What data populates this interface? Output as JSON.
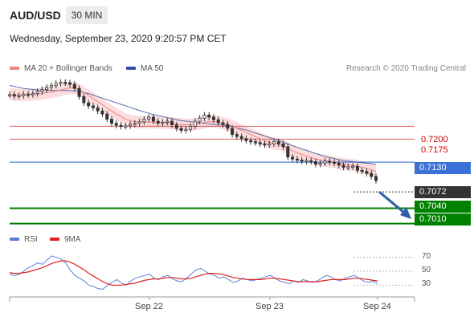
{
  "header": {
    "pair": "AUD/USD",
    "timeframe": "30 MIN",
    "datetime": "Wednesday, September 23, 2020 9:20:57 PM CET"
  },
  "legend": {
    "ma20_label": "MA 20 + Bollinger Bands",
    "ma50_label": "MA 50",
    "credit": "Research © 2020 Trading Central"
  },
  "rsi_legend": {
    "rsi_label": "RSI",
    "ma9_label": "9MA"
  },
  "colors": {
    "ma20": "#f08080",
    "ma50": "#2f4fa0",
    "band": "#fbd2d2",
    "current": "#333333",
    "green": "#008000",
    "blue": "#3a70d8",
    "red": "#e06060",
    "rsi": "#5b7fd6",
    "rsi_ma": "#e02020",
    "arrow": "#2d5ca8"
  },
  "chart_data": [
    {
      "type": "line",
      "title": "",
      "subtitle": "",
      "xlabel": "",
      "ylabel": "",
      "x_ticks": [
        "Sep 22",
        "Sep 23",
        "Sep 24"
      ],
      "ylim": [
        0.7,
        0.729
      ],
      "current_price": 0.7072,
      "levels": [
        {
          "price": 0.72,
          "label": "0.7200",
          "kind": "resistance"
        },
        {
          "price": 0.7175,
          "label": "0.7175",
          "kind": "resistance"
        },
        {
          "price": 0.713,
          "label": "0.7130",
          "kind": "pivot"
        },
        {
          "price": 0.7072,
          "label": "0.7072",
          "kind": "current"
        },
        {
          "price": 0.704,
          "label": "0.7040",
          "kind": "target"
        },
        {
          "price": 0.701,
          "label": "0.7010",
          "kind": "target"
        }
      ],
      "close": [
        0.7262,
        0.7259,
        0.726,
        0.7263,
        0.7262,
        0.7264,
        0.7268,
        0.7272,
        0.7276,
        0.728,
        0.7284,
        0.7286,
        0.7285,
        0.7282,
        0.7274,
        0.7258,
        0.7246,
        0.724,
        0.7236,
        0.723,
        0.7224,
        0.7214,
        0.7206,
        0.7202,
        0.72,
        0.7201,
        0.7204,
        0.7206,
        0.7209,
        0.7214,
        0.7218,
        0.721,
        0.7206,
        0.7208,
        0.721,
        0.7203,
        0.7196,
        0.7192,
        0.7194,
        0.72,
        0.721,
        0.7216,
        0.7222,
        0.7218,
        0.7213,
        0.7207,
        0.7204,
        0.7196,
        0.7184,
        0.718,
        0.7176,
        0.7172,
        0.717,
        0.7168,
        0.7166,
        0.7164,
        0.7166,
        0.717,
        0.7166,
        0.716,
        0.714,
        0.7136,
        0.7134,
        0.7132,
        0.7133,
        0.7131,
        0.7126,
        0.7128,
        0.7132,
        0.713,
        0.7128,
        0.7124,
        0.712,
        0.7121,
        0.7122,
        0.7114,
        0.7112,
        0.7108,
        0.7102,
        0.7094
      ],
      "series": [
        {
          "name": "MA 20 + Bollinger Bands",
          "values": [
            0.7262,
            0.7262,
            0.7261,
            0.7261,
            0.7261,
            0.7262,
            0.7263,
            0.7264,
            0.7266,
            0.7267,
            0.7269,
            0.7271,
            0.7273,
            0.7275,
            0.7275,
            0.7271,
            0.7266,
            0.726,
            0.7254,
            0.7248,
            0.7242,
            0.7236,
            0.723,
            0.7224,
            0.7219,
            0.7214,
            0.7211,
            0.7209,
            0.7208,
            0.7208,
            0.7208,
            0.7208,
            0.7207,
            0.7207,
            0.7207,
            0.7206,
            0.7205,
            0.7204,
            0.7203,
            0.7203,
            0.7204,
            0.7206,
            0.7208,
            0.7209,
            0.7209,
            0.7208,
            0.7206,
            0.7203,
            0.72,
            0.7196,
            0.7192,
            0.7188,
            0.7184,
            0.718,
            0.7176,
            0.7172,
            0.7169,
            0.7167,
            0.7165,
            0.7162,
            0.7157,
            0.7152,
            0.7148,
            0.7145,
            0.7142,
            0.7139,
            0.7136,
            0.7134,
            0.7133,
            0.7131,
            0.713,
            0.7128,
            0.7126,
            0.7125,
            0.7124,
            0.7122,
            0.712,
            0.7118,
            0.7115,
            0.7112
          ]
        },
        {
          "name": "MA 50",
          "values": [
            0.728,
            0.7278,
            0.7276,
            0.7274,
            0.7273,
            0.7272,
            0.7271,
            0.727,
            0.727,
            0.727,
            0.727,
            0.727,
            0.727,
            0.727,
            0.7269,
            0.7268,
            0.7266,
            0.7264,
            0.7261,
            0.7258,
            0.7255,
            0.7252,
            0.7249,
            0.7246,
            0.7243,
            0.724,
            0.7237,
            0.7234,
            0.7231,
            0.7228,
            0.7226,
            0.7223,
            0.7221,
            0.7219,
            0.7217,
            0.7215,
            0.7213,
            0.7211,
            0.721,
            0.7209,
            0.7208,
            0.7207,
            0.7206,
            0.7205,
            0.7204,
            0.7203,
            0.7202,
            0.7201,
            0.7199,
            0.7197,
            0.7195,
            0.7193,
            0.719,
            0.7187,
            0.7184,
            0.7181,
            0.7178,
            0.7175,
            0.7172,
            0.7169,
            0.7166,
            0.7162,
            0.7159,
            0.7156,
            0.7153,
            0.715,
            0.7147,
            0.7144,
            0.7141,
            0.7139,
            0.7137,
            0.7135,
            0.7133,
            0.7132,
            0.7131,
            0.713,
            0.7129,
            0.7128,
            0.7127,
            0.7126
          ]
        }
      ],
      "band_width": 0.0012,
      "projection": {
        "from": 0.7072,
        "to": 0.7025
      }
    },
    {
      "type": "line",
      "title": "",
      "ylim": [
        20,
        80
      ],
      "y_ticks": [
        "70",
        "50",
        "30"
      ],
      "series": [
        {
          "name": "RSI",
          "values": [
            46,
            44,
            45,
            50,
            55,
            58,
            62,
            60,
            66,
            72,
            70,
            68,
            62,
            52,
            44,
            40,
            36,
            30,
            28,
            25,
            24,
            30,
            34,
            38,
            33,
            30,
            36,
            40,
            42,
            44,
            46,
            40,
            38,
            42,
            44,
            39,
            36,
            35,
            40,
            46,
            52,
            54,
            50,
            46,
            44,
            40,
            42,
            38,
            34,
            36,
            40,
            38,
            36,
            38,
            40,
            42,
            44,
            40,
            36,
            34,
            32,
            36,
            34,
            38,
            36,
            34,
            36,
            40,
            44,
            42,
            38,
            36,
            40,
            42,
            44,
            40,
            36,
            34,
            36,
            32
          ]
        },
        {
          "name": "9MA",
          "values": [
            48,
            47,
            47,
            48,
            49,
            51,
            53,
            55,
            58,
            61,
            63,
            65,
            65,
            63,
            60,
            56,
            52,
            47,
            43,
            39,
            35,
            32,
            30,
            30,
            30,
            31,
            32,
            33,
            35,
            37,
            38,
            39,
            39,
            40,
            41,
            41,
            40,
            39,
            39,
            40,
            42,
            44,
            46,
            47,
            47,
            46,
            45,
            43,
            41,
            40,
            39,
            38,
            38,
            38,
            38,
            39,
            40,
            40,
            39,
            38,
            37,
            36,
            35,
            35,
            35,
            35,
            35,
            36,
            37,
            38,
            38,
            38,
            38,
            39,
            40,
            40,
            39,
            38,
            37,
            36
          ]
        }
      ]
    }
  ]
}
